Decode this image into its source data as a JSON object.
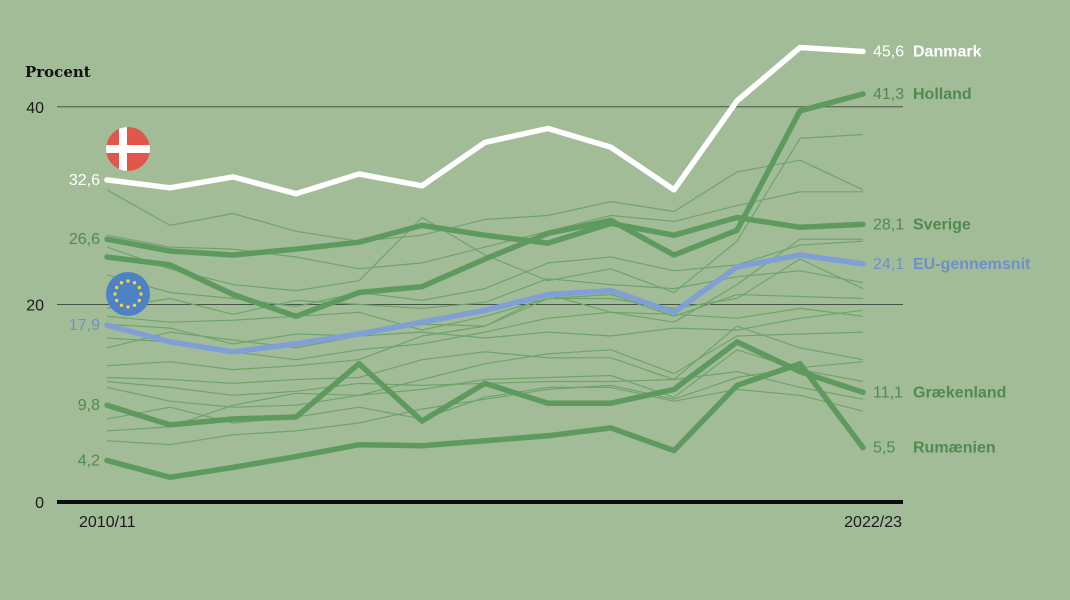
{
  "chart_data": {
    "type": "line",
    "ylabel": "Procent",
    "ylim": [
      0,
      45.6
    ],
    "yticks": [
      "0",
      "20",
      "40"
    ],
    "x_start_label": "2010/11",
    "x_end_label": "2022/23",
    "x_count": 13,
    "grid": "horizontal lines at 20 and 40",
    "colors": {
      "background": "#a3bc98",
      "highlight_green": "#5e9a5e",
      "thin_green": "#6ea46b",
      "label_green": "#4f8a4f",
      "white": "#ffffff",
      "eu_blue": "#7f9fd6",
      "danish_flag_red": "#e2574c",
      "eu_flag_blue": "#4d82c7",
      "eu_star_yellow": "#f1d43a"
    },
    "icons": {
      "danish_flag": "danish-flag-icon",
      "eu_flag": "eu-flag-icon"
    },
    "highlighted_series": [
      {
        "name": "Danmark",
        "start_label": "32,6",
        "end_label": "45,6",
        "color": "#ffffff",
        "values": [
          32.6,
          31.8,
          32.9,
          31.2,
          33.2,
          32.0,
          36.4,
          37.8,
          35.9,
          31.6,
          40.6,
          46.0,
          45.6
        ]
      },
      {
        "name": "Holland",
        "start_label": "",
        "end_label": "41,3",
        "color": "#5e9a5e",
        "values": [
          24.8,
          24.0,
          21.0,
          18.8,
          21.2,
          21.8,
          24.6,
          27.2,
          28.5,
          25.0,
          27.5,
          39.6,
          41.3
        ]
      },
      {
        "name": "Sverige",
        "start_label": "26,6",
        "end_label": "28,1",
        "color": "#5e9a5e",
        "values": [
          26.6,
          25.4,
          25.0,
          25.6,
          26.3,
          28.0,
          27.0,
          26.2,
          28.2,
          27.0,
          28.8,
          27.8,
          28.1
        ]
      },
      {
        "name": "EU-gennemsnit",
        "start_label": "17,9",
        "end_label": "24,1",
        "color": "#7f9fd6",
        "values": [
          17.9,
          16.2,
          15.2,
          16.0,
          17.0,
          18.2,
          19.4,
          21.0,
          21.4,
          19.2,
          23.8,
          25.0,
          24.1
        ]
      },
      {
        "name": "Grækenland",
        "start_label": "9,8",
        "end_label": "11,1",
        "color": "#5e9a5e",
        "values": [
          9.8,
          7.8,
          8.4,
          8.6,
          14.0,
          8.2,
          12.0,
          10.0,
          10.0,
          11.4,
          16.2,
          13.2,
          11.1
        ]
      },
      {
        "name": "Rumænien",
        "start_label": "4,2",
        "end_label": "5,5",
        "color": "#5e9a5e",
        "values": [
          4.2,
          2.5,
          3.5,
          4.6,
          5.8,
          5.7,
          6.2,
          6.7,
          7.5,
          5.2,
          11.8,
          14.0,
          5.5
        ]
      }
    ],
    "background_series": [
      [
        31.6,
        28.0,
        29.2,
        27.4,
        26.4,
        27.0,
        28.6,
        29.0,
        30.4,
        29.4,
        33.4,
        34.6,
        31.6
      ],
      [
        27.0,
        25.8,
        25.6,
        24.8,
        23.6,
        24.2,
        25.8,
        27.4,
        29.0,
        28.4,
        30.0,
        31.4,
        31.4
      ],
      [
        25.8,
        23.6,
        22.0,
        21.4,
        22.4,
        28.8,
        25.0,
        22.4,
        23.6,
        21.2,
        26.4,
        36.8,
        37.2
      ],
      [
        23.0,
        21.2,
        20.6,
        19.8,
        21.2,
        20.4,
        21.6,
        24.2,
        24.8,
        23.4,
        24.0,
        26.0,
        26.4
      ],
      [
        19.6,
        20.6,
        19.0,
        20.4,
        20.0,
        19.6,
        20.2,
        22.6,
        22.0,
        21.6,
        22.8,
        23.4,
        22.2
      ],
      [
        18.8,
        18.2,
        18.4,
        18.8,
        19.2,
        17.4,
        18.8,
        20.6,
        20.6,
        19.6,
        20.6,
        24.6,
        21.6
      ],
      [
        18.0,
        17.6,
        16.0,
        17.0,
        16.8,
        18.0,
        17.8,
        20.6,
        21.0,
        18.8,
        21.0,
        20.8,
        20.6
      ],
      [
        16.6,
        16.2,
        15.2,
        14.4,
        15.4,
        16.0,
        17.2,
        18.6,
        19.2,
        19.0,
        18.6,
        19.6,
        18.8
      ],
      [
        15.6,
        17.2,
        16.4,
        15.6,
        16.8,
        17.2,
        16.6,
        17.2,
        16.8,
        17.6,
        17.4,
        18.6,
        19.4
      ],
      [
        13.8,
        14.2,
        13.4,
        13.8,
        14.4,
        16.8,
        17.8,
        21.0,
        19.2,
        18.2,
        22.0,
        26.6,
        26.6
      ],
      [
        12.6,
        12.4,
        12.0,
        12.4,
        12.6,
        14.4,
        15.2,
        14.6,
        14.6,
        12.4,
        17.8,
        15.6,
        14.4
      ],
      [
        12.2,
        11.6,
        10.8,
        11.2,
        12.0,
        11.8,
        12.0,
        12.2,
        12.2,
        12.4,
        13.2,
        11.6,
        10.4
      ],
      [
        11.6,
        10.2,
        9.6,
        9.8,
        10.8,
        11.4,
        12.4,
        12.6,
        12.8,
        10.6,
        15.4,
        13.4,
        12.2
      ],
      [
        8.4,
        9.6,
        8.0,
        8.6,
        9.6,
        8.4,
        10.6,
        11.6,
        11.6,
        10.2,
        11.4,
        10.8,
        9.2
      ],
      [
        7.2,
        7.6,
        9.8,
        11.0,
        10.8,
        12.4,
        14.0,
        15.0,
        15.4,
        13.0,
        16.8,
        17.0,
        17.2
      ],
      [
        6.2,
        5.8,
        6.8,
        7.2,
        8.0,
        9.4,
        10.4,
        11.4,
        11.8,
        10.4,
        12.6,
        13.6,
        14.2
      ]
    ]
  }
}
